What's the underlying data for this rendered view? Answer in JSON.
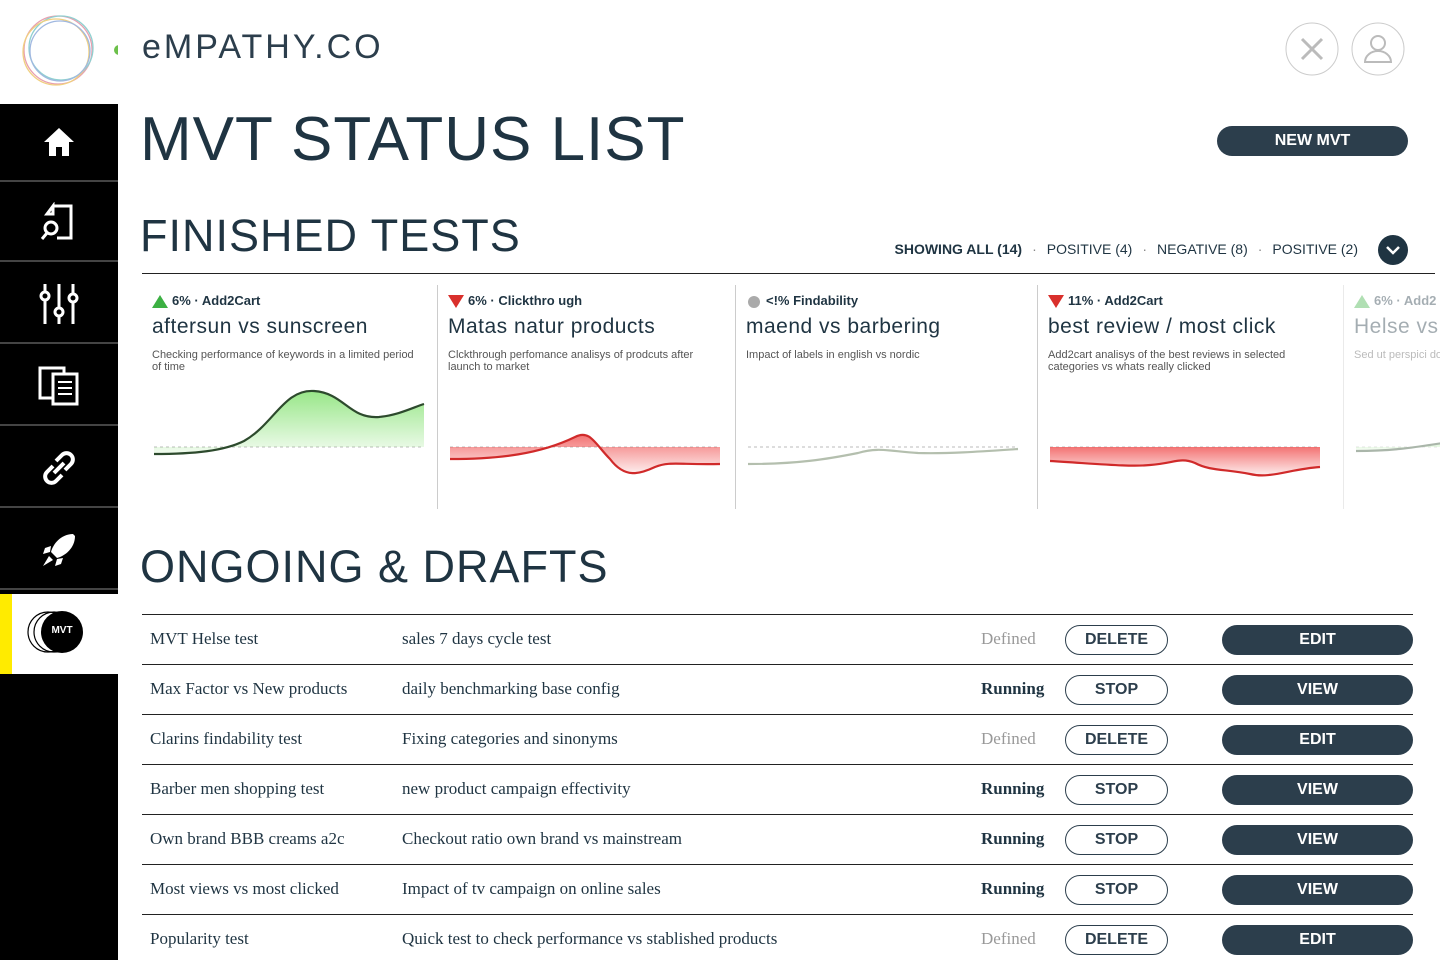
{
  "header": {
    "brand": "eMPATHY.CO"
  },
  "nav": {
    "active_label": "MVT"
  },
  "page_title": "MVT STATUS LIST",
  "new_button": "NEW MVT",
  "finished": {
    "title": "FINISHED TESTS",
    "filters": [
      "SHOWING ALL (14)",
      "POSITIVE (4)",
      "NEGATIVE (8)",
      "POSITIVE (2)"
    ],
    "filter_separator": "·",
    "cards": [
      {
        "trend": "up",
        "badge": "6% · Add2Cart",
        "title": "aftersun vs sunscreen",
        "description": "Checking performance of keywords in a limited period of time"
      },
      {
        "trend": "down",
        "badge": "6% · Clickthro ugh",
        "title": "Matas natur products",
        "description": "Clckthrough perfomance analisys of prodcuts after launch to market"
      },
      {
        "trend": "neutral",
        "badge": "<!% Findability",
        "title": "maend vs barbering",
        "description": "Impact of labels in english vs nordic"
      },
      {
        "trend": "down",
        "badge": "11% · Add2Cart",
        "title": "best review / most click",
        "description": "Add2cart analisys of the best reviews in selected categories vs whats really clicked"
      },
      {
        "trend": "up",
        "badge": "6% · Add2",
        "title": "Helse vs",
        "description": "Sed ut perspici dorenque acus"
      }
    ]
  },
  "ongoing": {
    "title": "ONGOING & DRAFTS",
    "rows": [
      {
        "name": "MVT Helse test",
        "description": "sales 7 days cycle test",
        "status": "Defined",
        "action": "DELETE",
        "button": "EDIT"
      },
      {
        "name": "Max Factor vs New products",
        "description": "daily benchmarking base config",
        "status": "Running",
        "action": "STOP",
        "button": "VIEW"
      },
      {
        "name": "Clarins findability test",
        "description": "Fixing categories and sinonyms",
        "status": "Defined",
        "action": "DELETE",
        "button": "EDIT"
      },
      {
        "name": "Barber men shopping test",
        "description": "new product campaign effectivity",
        "status": "Running",
        "action": "STOP",
        "button": "VIEW"
      },
      {
        "name": "Own brand BBB creams a2c",
        "description": "Checkout ratio own brand vs mainstream",
        "status": "Running",
        "action": "STOP",
        "button": "VIEW"
      },
      {
        "name": "Most views vs most clicked",
        "description": "Impact of tv campaign on online sales",
        "status": "Running",
        "action": "STOP",
        "button": "VIEW"
      },
      {
        "name": "Popularity test",
        "description": "Quick test to check performance vs stablished products",
        "status": "Defined",
        "action": "DELETE",
        "button": "EDIT"
      }
    ]
  }
}
